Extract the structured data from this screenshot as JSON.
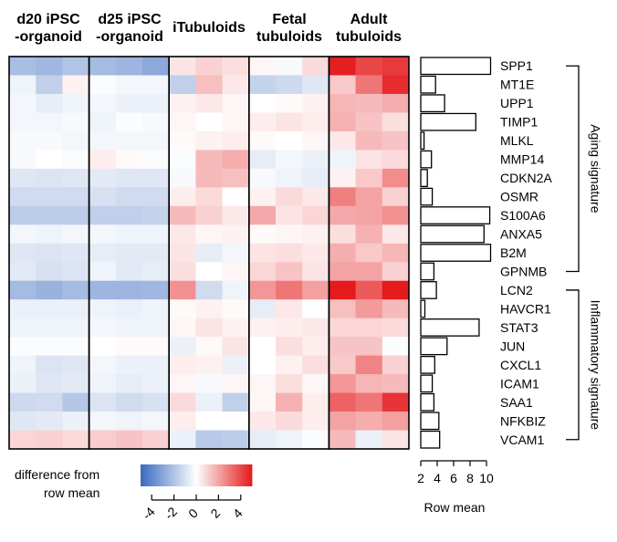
{
  "chart_data": {
    "type": "heatmap",
    "column_groups": [
      "d20 iPSC\n-organoid",
      "d25 iPSC\n-organoid",
      "iTubuloids",
      "Fetal\ntubuloids",
      "Adult\ntubuloids"
    ],
    "replicates_per_group": 3,
    "genes": [
      "SPP1",
      "MT1E",
      "UPP1",
      "TIMP1",
      "MLKL",
      "MMP14",
      "CDKN2A",
      "OSMR",
      "S100A6",
      "ANXA5",
      "B2M",
      "GPNMB",
      "LCN2",
      "HAVCR1",
      "STAT3",
      "JUN",
      "CXCL1",
      "ICAM1",
      "SAA1",
      "NFKBIZ",
      "VCAM1"
    ],
    "values": [
      [
        -2.2,
        -2.4,
        -2.0,
        -2.3,
        -2.5,
        -2.9,
        0.6,
        1.0,
        0.7,
        0.2,
        -0.2,
        0.8,
        4.9,
        4.0,
        4.3
      ],
      [
        -0.4,
        -1.6,
        0.3,
        -0.1,
        -0.3,
        -0.3,
        -1.6,
        1.4,
        0.5,
        -1.5,
        -1.3,
        -0.8,
        1.2,
        3.0,
        4.6
      ],
      [
        -0.3,
        -0.6,
        -0.4,
        -0.3,
        -0.5,
        -0.5,
        0.3,
        0.5,
        0.2,
        0.0,
        0.1,
        0.3,
        1.6,
        1.5,
        1.8
      ],
      [
        -0.3,
        -0.3,
        -0.2,
        -0.4,
        -0.1,
        -0.2,
        0.2,
        0.0,
        0.2,
        0.4,
        0.6,
        0.4,
        1.7,
        1.3,
        0.7
      ],
      [
        -0.2,
        -0.2,
        -0.3,
        -0.3,
        -0.3,
        -0.3,
        0.1,
        0.3,
        0.4,
        0.1,
        0.0,
        0.2,
        0.5,
        1.5,
        1.3
      ],
      [
        -0.2,
        0.0,
        -0.1,
        0.4,
        0.1,
        -0.1,
        -0.1,
        1.5,
        1.8,
        -0.6,
        -0.3,
        -0.5,
        -0.4,
        0.6,
        0.8
      ],
      [
        -0.8,
        -0.9,
        -0.8,
        -0.7,
        -0.8,
        -0.8,
        -0.2,
        1.5,
        1.4,
        -0.2,
        -0.4,
        -0.6,
        0.3,
        1.2,
        2.5
      ],
      [
        -1.2,
        -1.2,
        -1.2,
        -1.0,
        -1.2,
        -1.2,
        0.4,
        0.8,
        0.0,
        0.3,
        0.8,
        0.5,
        2.8,
        2.0,
        1.0
      ],
      [
        -1.7,
        -1.7,
        -1.7,
        -1.6,
        -1.6,
        -1.5,
        1.5,
        1.0,
        0.5,
        1.9,
        0.6,
        0.9,
        1.9,
        2.0,
        2.4
      ],
      [
        -0.3,
        -0.4,
        -0.3,
        -0.3,
        -0.4,
        -0.4,
        0.5,
        0.2,
        0.3,
        0.1,
        0.2,
        0.3,
        0.7,
        1.7,
        0.5
      ],
      [
        -0.8,
        -0.9,
        -0.8,
        -0.6,
        -0.7,
        -0.7,
        0.6,
        -0.6,
        -0.3,
        0.6,
        0.7,
        0.5,
        1.8,
        1.2,
        1.6
      ],
      [
        -0.7,
        -1.0,
        -0.9,
        -0.4,
        -0.7,
        -0.6,
        0.7,
        0.0,
        0.2,
        0.9,
        1.3,
        0.6,
        2.0,
        2.0,
        1.0
      ],
      [
        -2.3,
        -2.6,
        -2.3,
        -2.5,
        -2.5,
        -2.4,
        2.4,
        -1.2,
        -0.4,
        2.3,
        3.0,
        2.1,
        5.0,
        3.6,
        5.3
      ],
      [
        -0.5,
        -0.5,
        -0.5,
        -0.4,
        -0.5,
        -0.4,
        0.1,
        0.3,
        0.1,
        -0.6,
        0.5,
        0.0,
        1.4,
        2.2,
        1.5
      ],
      [
        -0.4,
        -0.4,
        -0.4,
        -0.3,
        -0.4,
        -0.4,
        0.2,
        0.6,
        0.3,
        0.3,
        0.4,
        0.5,
        0.9,
        0.9,
        0.8
      ],
      [
        -0.1,
        -0.1,
        -0.1,
        0.0,
        0.1,
        0.1,
        -0.5,
        0.1,
        0.6,
        0.0,
        0.7,
        0.4,
        1.3,
        1.3,
        -0.1
      ],
      [
        -0.4,
        -0.9,
        -0.8,
        -0.3,
        -0.5,
        -0.5,
        0.4,
        0.3,
        -0.5,
        0.0,
        0.3,
        0.7,
        1.2,
        2.7,
        1.0
      ],
      [
        -0.5,
        -0.8,
        -0.7,
        -0.4,
        -0.6,
        -0.5,
        0.2,
        -0.2,
        0.2,
        0.2,
        0.7,
        0.2,
        2.3,
        1.6,
        1.5
      ],
      [
        -1.3,
        -1.2,
        -1.9,
        -0.9,
        -1.2,
        -1.0,
        0.8,
        -0.5,
        -1.6,
        0.2,
        1.7,
        0.4,
        3.4,
        3.0,
        4.4
      ],
      [
        -0.8,
        -0.7,
        -0.5,
        -0.3,
        -0.4,
        -0.3,
        0.4,
        0.0,
        0.0,
        0.5,
        0.8,
        0.4,
        2.0,
        1.8,
        2.1
      ],
      [
        0.9,
        1.0,
        0.8,
        1.1,
        1.3,
        1.0,
        -0.5,
        -1.8,
        -1.7,
        -0.6,
        -0.4,
        -0.1,
        1.5,
        -0.5,
        0.6
      ]
    ],
    "row_mean": {
      "values": [
        10.5,
        3.8,
        4.9,
        8.7,
        2.4,
        3.3,
        2.8,
        3.4,
        10.4,
        9.7,
        10.5,
        3.6,
        3.9,
        2.5,
        9.1,
        5.2,
        3.7,
        3.4,
        3.6,
        4.2,
        4.3
      ],
      "axis_min": 2,
      "axis_ticks": [
        2,
        4,
        6,
        8,
        10
      ],
      "axis_label": "Row mean"
    },
    "color_scale": {
      "label_line1": "difference from",
      "label_line2": "row mean",
      "min": -5,
      "max": 5,
      "ticks": [
        -4,
        -2,
        0,
        2,
        4
      ],
      "low_color": "#3a6bc0",
      "mid_color": "#ffffff",
      "high_color": "#e41a1c"
    },
    "signatures": [
      {
        "name": "Aging signature",
        "from_gene": "SPP1",
        "to_gene": "GPNMB"
      },
      {
        "name": "Inflammatory signature",
        "from_gene": "LCN2",
        "to_gene": "VCAM1"
      }
    ]
  }
}
